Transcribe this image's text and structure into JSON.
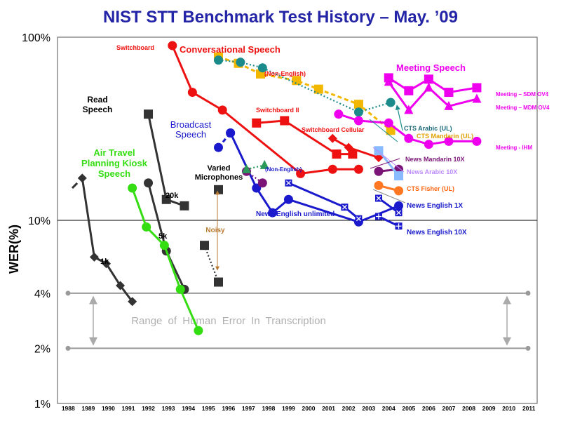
{
  "chart_data": {
    "type": "line",
    "title": "NIST STT Benchmark Test History – May. ’09",
    "ylabel": "WER(%)",
    "y_scale": "log",
    "ylim": [
      1,
      100
    ],
    "xlim": [
      1988,
      2011
    ],
    "grid": false,
    "y_ticks": [
      {
        "label": "100%",
        "value": 100
      },
      {
        "label": "10%",
        "value": 10
      },
      {
        "label": "4%",
        "value": 4
      },
      {
        "label": "2%",
        "value": 2
      },
      {
        "label": "1%",
        "value": 1
      }
    ],
    "x_ticks": [
      "1988",
      "1989",
      "1990",
      "1991",
      "1992",
      "1993",
      "1994",
      "1995",
      "1996",
      "1997",
      "1998",
      "1999",
      "2000",
      "2001",
      "2002",
      "2003",
      "2004",
      "2005",
      "2006",
      "2007",
      "2008",
      "2009",
      "2010",
      "2011"
    ],
    "human_error_range": {
      "label": "Range of Human Error In Transcription",
      "low": 2,
      "high": 4
    },
    "series": [
      {
        "name": "Read Speech 1k",
        "color": "#333333",
        "marker": "diamond",
        "dash": "",
        "x": [
          1988.7,
          1989.3,
          1989.9,
          1990.6,
          1991.2
        ],
        "y": [
          17,
          6.3,
          5.8,
          4.4,
          3.6
        ]
      },
      {
        "name": "Read Speech 1k (early)",
        "color": "#333333",
        "marker": "none",
        "dash": "long",
        "x": [
          1988.2,
          1988.7
        ],
        "y": [
          15,
          17
        ]
      },
      {
        "name": "Read Speech 20k",
        "color": "#333333",
        "marker": "square",
        "dash": "",
        "x": [
          1992.0,
          1992.9,
          1993.8
        ],
        "y": [
          38,
          13,
          12
        ]
      },
      {
        "name": "Read Speech 5k",
        "color": "#333333",
        "marker": "circle",
        "dash": "",
        "x": [
          1992.0,
          1992.9,
          1993.8
        ],
        "y": [
          16,
          6.8,
          4.2
        ]
      },
      {
        "name": "Air Travel Planning Kiosk Speech",
        "color": "#33dd11",
        "marker": "circle",
        "dash": "",
        "x": [
          1991.2,
          1991.9,
          1992.8,
          1993.6,
          1994.5
        ],
        "y": [
          15,
          9.2,
          7.3,
          4.2,
          2.5
        ]
      },
      {
        "name": "Varied Microphones",
        "color": "#333333",
        "marker": "square",
        "dash": "",
        "x": [
          1995.5
        ],
        "y": [
          14.7
        ]
      },
      {
        "name": "Noisy",
        "color": "#333333",
        "marker": "square",
        "dash": "dot",
        "x": [
          1994.8,
          1995.5
        ],
        "y": [
          7.3,
          4.6
        ]
      },
      {
        "name": "Switchboard",
        "color": "#ee1111",
        "marker": "circle",
        "dash": "",
        "x": [
          1993.2,
          1994.2,
          1995.7,
          1999.6,
          2001.2,
          2002.5
        ],
        "y": [
          90,
          50,
          40,
          18,
          19,
          19
        ]
      },
      {
        "name": "Switchboard II",
        "color": "#ee1111",
        "marker": "square",
        "dash": "",
        "x": [
          1997.4,
          1998.8,
          2001.4,
          2002.2
        ],
        "y": [
          34,
          35,
          23,
          23
        ]
      },
      {
        "name": "Switchboard Cellular",
        "color": "#ee1111",
        "marker": "diamond",
        "dash": "",
        "x": [
          2001.2,
          2002.0,
          2003.5
        ],
        "y": [
          28,
          25,
          22
        ]
      },
      {
        "name": "Broadcast Speech",
        "color": "#1a1acc",
        "marker": "circle",
        "dash": "",
        "x": [
          1996.1,
          1997.4,
          1998.2,
          1999.0,
          2002.5,
          2004.5
        ],
        "y": [
          30,
          15,
          11,
          13,
          9.8,
          12
        ]
      },
      {
        "name": "Broadcast Speech (early)",
        "color": "#1a1acc",
        "marker": "circle",
        "dash": "dash",
        "x": [
          1995.5,
          1996.1
        ],
        "y": [
          25,
          30
        ]
      },
      {
        "name": "News English unlimited",
        "color": "#1a1acc",
        "marker": "square-x",
        "dash": "",
        "x": [
          1999.0,
          2001.8,
          2002.5
        ],
        "y": [
          16,
          11.8,
          10.2
        ]
      },
      {
        "name": "News English 1X",
        "color": "#1a1acc",
        "marker": "square-x",
        "dash": "",
        "x": [
          2003.5,
          2004.5
        ],
        "y": [
          13.2,
          11
        ]
      },
      {
        "name": "News English 10X",
        "color": "#1a1acc",
        "marker": "square-plus",
        "dash": "",
        "x": [
          2003.5,
          2004.5
        ],
        "y": [
          10.5,
          9.3
        ]
      },
      {
        "name": "Conversational Speech (Non-English)",
        "color": "#f2b700",
        "marker": "square",
        "dash": "dash",
        "x": [
          1995.5,
          1996.5,
          1997.6,
          1999.4,
          2000.5,
          2002.5,
          2004.1
        ],
        "y": [
          78,
          72,
          63,
          58,
          52,
          43,
          31
        ]
      },
      {
        "name": "Conversational Speech (Non-English) ii",
        "color": "#1a8a8a",
        "marker": "circle",
        "dash": "dot",
        "x": [
          1995.5,
          1996.6,
          1997.7,
          2002.5,
          2004.1
        ],
        "y": [
          75,
          73,
          68,
          39,
          44
        ]
      },
      {
        "name": "Meeting Speech – SDM OV4",
        "color": "#ee00ee",
        "marker": "square",
        "dash": "",
        "x": [
          2004.0,
          2005.0,
          2006.0,
          2007.0,
          2008.4
        ],
        "y": [
          60,
          51,
          59,
          50,
          53
        ]
      },
      {
        "name": "Meeting – MDM OV4",
        "color": "#ee00ee",
        "marker": "triangle",
        "dash": "",
        "x": [
          2004.0,
          2005.0,
          2006.0,
          2007.0,
          2008.4
        ],
        "y": [
          57,
          40,
          53,
          42,
          46
        ]
      },
      {
        "name": "Meeting - IHM",
        "color": "#ee00ee",
        "marker": "circle",
        "dash": "",
        "x": [
          2001.5,
          2002.5,
          2004.0,
          2005.0,
          2006.0,
          2007.0,
          2008.4
        ],
        "y": [
          38,
          35,
          34,
          28,
          26,
          27,
          27
        ]
      },
      {
        "name": "News Mandarin 10X",
        "color": "#7a1577",
        "marker": "circle",
        "dash": "",
        "x": [
          2003.5,
          2004.5
        ],
        "y": [
          18.5,
          19
        ]
      },
      {
        "name": "News Mandarin (Non-English)",
        "color": "#7a1577",
        "marker": "circle",
        "dash": "dot",
        "x": [
          1996.9,
          1997.7
        ],
        "y": [
          18.5,
          16
        ]
      },
      {
        "name": "CTS Arabic (UL)",
        "color": "#2a9a5a",
        "marker": "triangle",
        "dash": "dot",
        "x": [
          1996.9,
          1997.8
        ],
        "y": [
          19,
          20
        ]
      },
      {
        "name": "News Arabic 10X",
        "color": "#88bbff",
        "marker": "square",
        "dash": "",
        "x": [
          2003.5,
          2004.5
        ],
        "y": [
          24,
          17.5
        ]
      },
      {
        "name": "CTS Fisher (UL)",
        "color": "#ff7722",
        "marker": "circle",
        "dash": "",
        "x": [
          2003.5,
          2004.5
        ],
        "y": [
          15.5,
          14.5
        ]
      }
    ],
    "annotations": [
      {
        "text": "Read",
        "color": "#000000"
      },
      {
        "text": "Speech",
        "color": "#000000"
      },
      {
        "text": "1k",
        "color": "#000000"
      },
      {
        "text": "20k",
        "color": "#000000"
      },
      {
        "text": "5k",
        "color": "#000000"
      },
      {
        "text": "Air Travel",
        "color": "#33dd11"
      },
      {
        "text": "Planning Kiosk",
        "color": "#33dd11"
      },
      {
        "text": "Speech",
        "color": "#33dd11"
      },
      {
        "text": "Varied",
        "color": "#000000"
      },
      {
        "text": "Microphones",
        "color": "#000000"
      },
      {
        "text": "Noisy",
        "color": "#b87a33"
      },
      {
        "text": "Switchboard",
        "color": "#ee1111"
      },
      {
        "text": "Conversational Speech",
        "color": "#ee1111"
      },
      {
        "text": "(Non-English)",
        "color": "#ee1111"
      },
      {
        "text": "Switchboard II",
        "color": "#ee1111"
      },
      {
        "text": "Switchboard Cellular",
        "color": "#ee1111"
      },
      {
        "text": "Broadcast",
        "color": "#1a1acc"
      },
      {
        "text": "Speech",
        "color": "#1a1acc"
      },
      {
        "text": "(Non-English)",
        "color": "#1a1acc"
      },
      {
        "text": "News English unlimited",
        "color": "#1a1acc"
      },
      {
        "text": "Meeting Speech",
        "color": "#ee00ee"
      },
      {
        "text": "Meeting – SDM OV4",
        "color": "#ee00ee"
      },
      {
        "text": "Meeting – MDM OV4",
        "color": "#ee00ee"
      },
      {
        "text": "Meeting - IHM",
        "color": "#ee00ee"
      },
      {
        "text": "CTS Arabic (UL)",
        "color": "#1a6a7a"
      },
      {
        "text": "CTS Mandarin (UL)",
        "color": "#e0a000"
      },
      {
        "text": "News Mandarin 10X",
        "color": "#7a1577"
      },
      {
        "text": "News Arabic 10X",
        "color": "#bb88ff"
      },
      {
        "text": "CTS Fisher (UL)",
        "color": "#ff6611"
      },
      {
        "text": "News English 1X",
        "color": "#1a1acc"
      },
      {
        "text": "News English 10X",
        "color": "#1a1acc"
      }
    ]
  }
}
